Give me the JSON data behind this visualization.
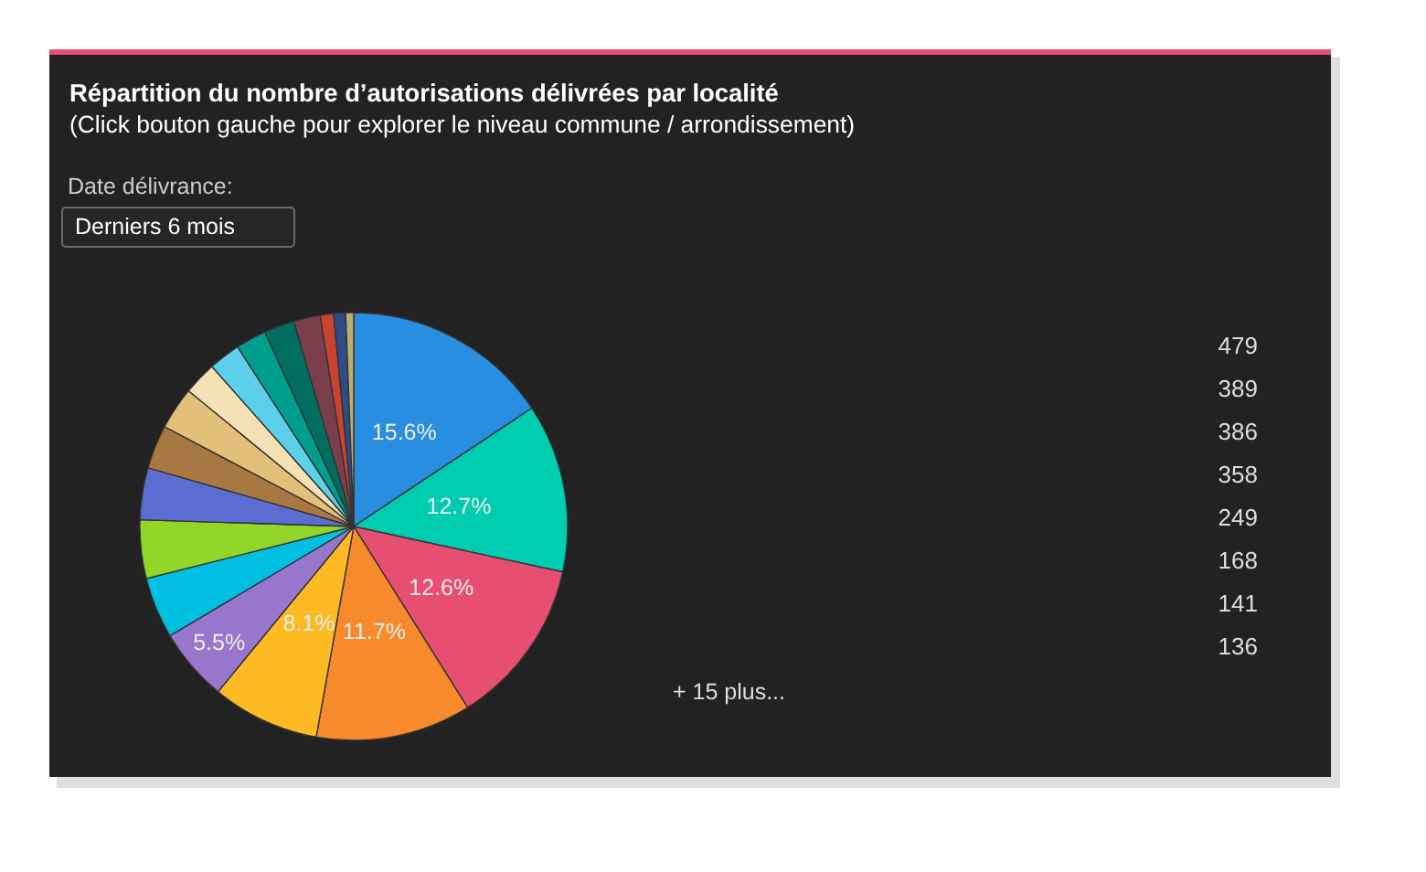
{
  "chart_data": {
    "type": "pie",
    "title": "Répartition du nombre d’autorisations délivrées par localité",
    "subtitle": "(Click bouton gauche pour explorer le niveau commune / arrondissement)",
    "categories": [
      null,
      null,
      null,
      null,
      null,
      null,
      null,
      null,
      null,
      null,
      null,
      null,
      null,
      null,
      null,
      null,
      null,
      null,
      null,
      null,
      null,
      null,
      null
    ],
    "values": [
      15.6,
      12.7,
      12.6,
      11.7,
      8.1,
      5.5,
      4.6,
      4.4,
      3.9,
      3.3,
      3.2,
      2.5,
      2.4,
      2.3,
      2.3,
      2.0,
      1.0,
      0.9,
      0.6,
      null,
      null,
      null,
      null
    ],
    "colors": [
      "#2a8ee0",
      "#00ccb0",
      "#e64f72",
      "#f68a2c",
      "#fdba23",
      "#9876cc",
      "#00bfe0",
      "#92d62a",
      "#5b6dd0",
      "#a87843",
      "#e2c07a",
      "#f4e1b6",
      "#5cd0ea",
      "#009e8e",
      "#006d60",
      "#7b3f4b",
      "#c9432f",
      "#2e4c86",
      "#b8b070",
      null,
      null,
      null,
      null
    ],
    "value_labels": [
      "15.6%",
      "12.7%",
      "12.6%",
      "11.7%",
      "8.1%",
      "5.5%",
      null,
      null,
      null,
      null,
      null,
      null,
      null,
      null,
      null,
      null,
      null,
      null,
      null,
      null,
      null,
      null,
      null
    ],
    "annotations": [
      "Date délivrance:",
      "Derniers 6 mois",
      "479",
      "389",
      "386",
      "358",
      "249",
      "168",
      "141",
      "136",
      "+ 15 plus..."
    ]
  }
}
